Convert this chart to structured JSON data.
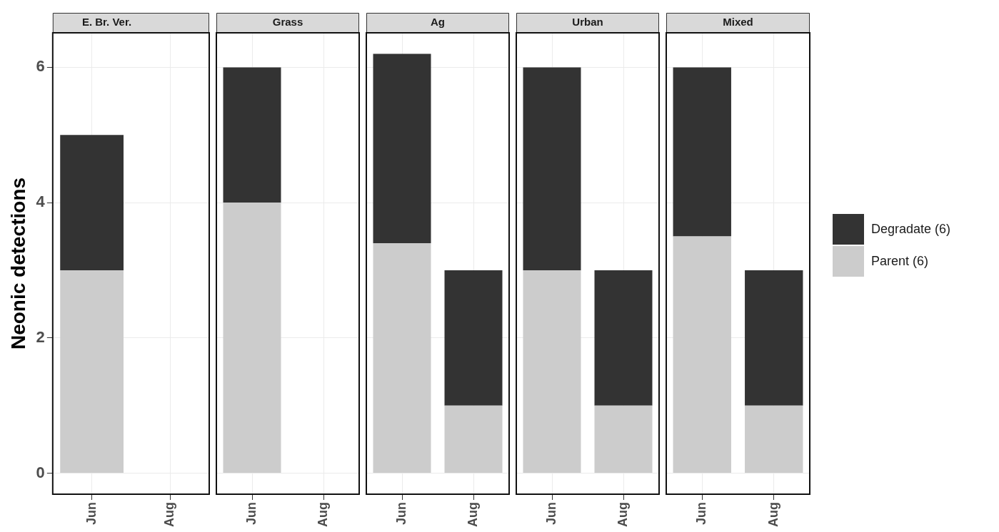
{
  "chart_data": [
    {
      "type": "bar",
      "title": "E. Br. Ver.",
      "ylabel": "Neonic detections",
      "categories": [
        "Jun",
        "Aug"
      ],
      "stacked": true,
      "ylim": [
        -0.31,
        6.51
      ],
      "yticks": [
        0,
        2,
        4,
        6
      ],
      "grid": true,
      "series": [
        {
          "color": "#cccccc",
          "values": [
            3,
            null
          ]
        },
        {
          "color": "#333333",
          "values": [
            2,
            null
          ]
        }
      ]
    },
    {
      "type": "bar",
      "title": "Grass",
      "categories": [
        "Jun",
        "Aug"
      ],
      "stacked": true,
      "ylim": [
        -0.31,
        6.51
      ],
      "yticks": [
        0,
        2,
        4,
        6
      ],
      "grid": true,
      "tick_labels": "x",
      "series": [
        {
          "color": "#cccccc",
          "values": [
            4,
            null
          ]
        },
        {
          "color": "#333333",
          "values": [
            2,
            null
          ]
        }
      ]
    },
    {
      "type": "bar",
      "title": "Ag",
      "categories": [
        "Jun",
        "Aug"
      ],
      "stacked": true,
      "ylim": [
        -0.31,
        6.51
      ],
      "yticks": [
        0,
        2,
        4,
        6
      ],
      "grid": true,
      "tick_labels": "x",
      "series": [
        {
          "color": "#cccccc",
          "values": [
            3.4,
            1
          ]
        },
        {
          "color": "#333333",
          "values": [
            2.8,
            2
          ]
        }
      ]
    },
    {
      "type": "bar",
      "title": "Urban",
      "categories": [
        "Jun",
        "Aug"
      ],
      "stacked": true,
      "ylim": [
        -0.31,
        6.51
      ],
      "yticks": [
        0,
        2,
        4,
        6
      ],
      "grid": true,
      "tick_labels": "x",
      "series": [
        {
          "color": "#cccccc",
          "values": [
            3,
            1
          ]
        },
        {
          "color": "#333333",
          "values": [
            3,
            2
          ]
        }
      ]
    },
    {
      "type": "bar",
      "title": "Mixed",
      "categories": [
        "Jun",
        "Aug"
      ],
      "stacked": true,
      "ylim": [
        -0.31,
        6.51
      ],
      "yticks": [
        0,
        2,
        4,
        6
      ],
      "grid": true,
      "tick_labels": "x",
      "legend": "right",
      "series": [
        {
          "name": "Parent (6)",
          "color": "#cccccc",
          "values": [
            3.5,
            1
          ]
        },
        {
          "name": "Degradate (6)",
          "color": "#333333",
          "values": [
            2.5,
            2
          ]
        }
      ]
    }
  ]
}
